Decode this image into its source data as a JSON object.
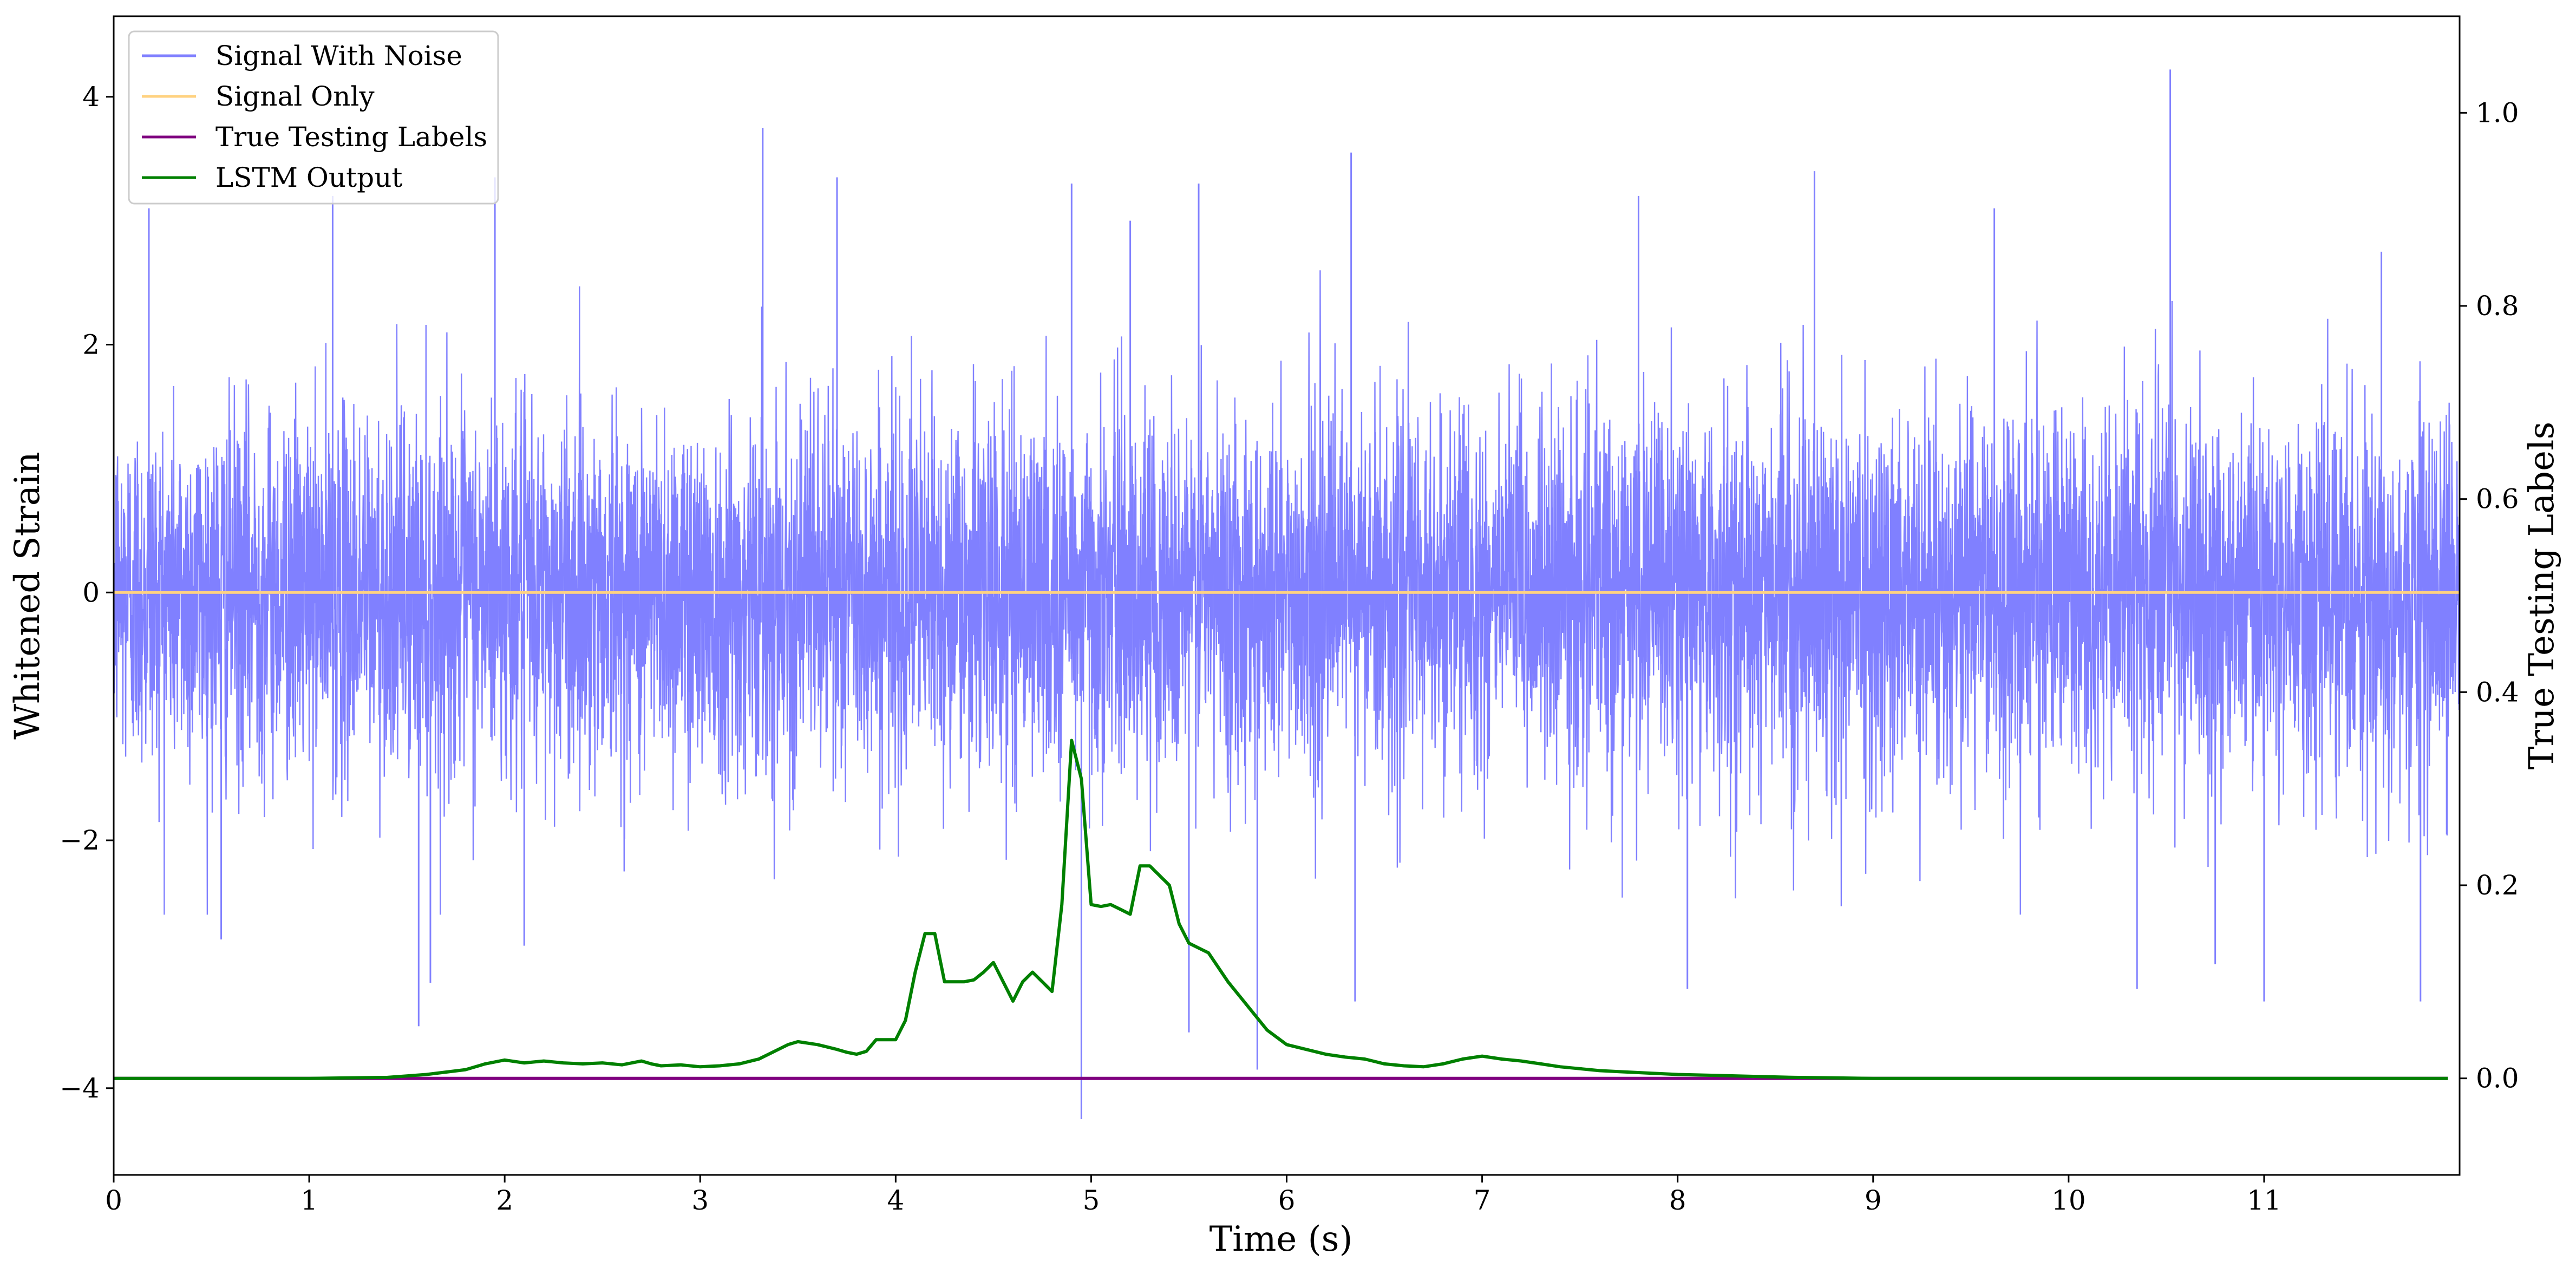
{
  "chart_data": {
    "type": "line",
    "xlabel": "Time (s)",
    "ylabel_left": "Whitened Strain",
    "ylabel_right": "True Testing Labels",
    "xlim": [
      0,
      12
    ],
    "ylim_left": [
      -4.7,
      4.65
    ],
    "ylim_right": [
      -0.1,
      1.1
    ],
    "x_ticks": [
      0,
      1,
      2,
      3,
      4,
      5,
      6,
      7,
      8,
      9,
      10,
      11
    ],
    "x_tick_labels": [
      "0",
      "1",
      "2",
      "3",
      "4",
      "5",
      "6",
      "7",
      "8",
      "9",
      "10",
      "11"
    ],
    "y_left_ticks": [
      4,
      2,
      0,
      -2,
      -4
    ],
    "y_left_tick_labels": [
      "4",
      "2",
      "0",
      "−2",
      "−4"
    ],
    "y_right_ticks": [
      1.0,
      0.8,
      0.6,
      0.4,
      0.2,
      0.0
    ],
    "y_right_tick_labels": [
      "1.0",
      "0.8",
      "0.6",
      "0.4",
      "0.2",
      "0.0"
    ],
    "grid": false,
    "legend_position": "top-left",
    "series": [
      {
        "name": "Signal With Noise",
        "axis": "left",
        "color": "#8080ff",
        "description_values": {
          "spikes": [
            [
              0.18,
              3.1
            ],
            [
              1.12,
              3.2
            ],
            [
              1.95,
              3.35
            ],
            [
              3.32,
              3.75
            ],
            [
              3.7,
              3.35
            ],
            [
              4.9,
              3.3
            ],
            [
              5.2,
              3.0
            ],
            [
              5.55,
              3.3
            ],
            [
              6.33,
              3.55
            ],
            [
              7.8,
              3.2
            ],
            [
              8.7,
              3.4
            ],
            [
              9.62,
              3.1
            ],
            [
              10.52,
              4.22
            ],
            [
              11.6,
              2.75
            ],
            [
              0.55,
              -2.8
            ],
            [
              1.56,
              -3.5
            ],
            [
              1.62,
              -3.15
            ],
            [
              2.1,
              -2.85
            ],
            [
              4.95,
              -4.25
            ],
            [
              5.5,
              -3.55
            ],
            [
              5.85,
              -3.85
            ],
            [
              6.35,
              -3.3
            ],
            [
              8.05,
              -3.2
            ],
            [
              10.35,
              -3.2
            ],
            [
              10.75,
              -3.0
            ],
            [
              11.0,
              -3.3
            ],
            [
              11.8,
              -3.3
            ]
          ],
          "typical_amplitude": 1.5,
          "noise_std": 0.72
        }
      },
      {
        "name": "Signal Only",
        "axis": "left",
        "color": "#ffd280",
        "x": [
          0,
          12
        ],
        "y": [
          0,
          0
        ]
      },
      {
        "name": "True Testing Labels",
        "axis": "right",
        "color": "#800080",
        "x": [
          0,
          11.94
        ],
        "y": [
          0,
          0
        ]
      },
      {
        "name": "LSTM Output",
        "axis": "right",
        "color": "#008000",
        "x": [
          0,
          1.0,
          1.4,
          1.6,
          1.8,
          1.9,
          2.0,
          2.1,
          2.2,
          2.3,
          2.4,
          2.5,
          2.6,
          2.7,
          2.75,
          2.8,
          2.9,
          3.0,
          3.1,
          3.2,
          3.3,
          3.4,
          3.45,
          3.5,
          3.6,
          3.7,
          3.75,
          3.8,
          3.85,
          3.9,
          4.0,
          4.05,
          4.1,
          4.15,
          4.2,
          4.25,
          4.3,
          4.35,
          4.4,
          4.45,
          4.5,
          4.55,
          4.6,
          4.65,
          4.7,
          4.75,
          4.8,
          4.85,
          4.9,
          4.95,
          5.0,
          5.05,
          5.1,
          5.15,
          5.2,
          5.25,
          5.3,
          5.4,
          5.45,
          5.5,
          5.55,
          5.6,
          5.7,
          5.8,
          5.9,
          6.0,
          6.1,
          6.2,
          6.3,
          6.4,
          6.5,
          6.6,
          6.7,
          6.8,
          6.9,
          7.0,
          7.1,
          7.2,
          7.3,
          7.4,
          7.5,
          7.6,
          7.7,
          7.8,
          7.9,
          8.0,
          8.2,
          8.4,
          8.6,
          8.8,
          9.0,
          9.4,
          10.0,
          11.0,
          11.94
        ],
        "y": [
          0,
          0,
          0.001,
          0.004,
          0.009,
          0.015,
          0.019,
          0.016,
          0.018,
          0.016,
          0.015,
          0.016,
          0.014,
          0.018,
          0.015,
          0.013,
          0.014,
          0.012,
          0.013,
          0.015,
          0.02,
          0.03,
          0.035,
          0.038,
          0.035,
          0.03,
          0.027,
          0.025,
          0.028,
          0.04,
          0.04,
          0.06,
          0.11,
          0.15,
          0.15,
          0.1,
          0.1,
          0.1,
          0.102,
          0.11,
          0.12,
          0.1,
          0.08,
          0.1,
          0.11,
          0.1,
          0.09,
          0.18,
          0.35,
          0.31,
          0.18,
          0.178,
          0.18,
          0.175,
          0.17,
          0.22,
          0.22,
          0.2,
          0.16,
          0.14,
          0.135,
          0.13,
          0.1,
          0.075,
          0.05,
          0.035,
          0.03,
          0.025,
          0.022,
          0.02,
          0.015,
          0.013,
          0.012,
          0.015,
          0.02,
          0.023,
          0.02,
          0.018,
          0.015,
          0.012,
          0.01,
          0.008,
          0.007,
          0.006,
          0.005,
          0.004,
          0.003,
          0.002,
          0.001,
          0.0005,
          0,
          0,
          0,
          0,
          0
        ]
      }
    ]
  },
  "legend": {
    "items": [
      {
        "label": "Signal With Noise",
        "color": "#8080ff"
      },
      {
        "label": "Signal Only",
        "color": "#ffd280"
      },
      {
        "label": "True Testing Labels",
        "color": "#800080"
      },
      {
        "label": "LSTM Output",
        "color": "#008000"
      }
    ]
  }
}
